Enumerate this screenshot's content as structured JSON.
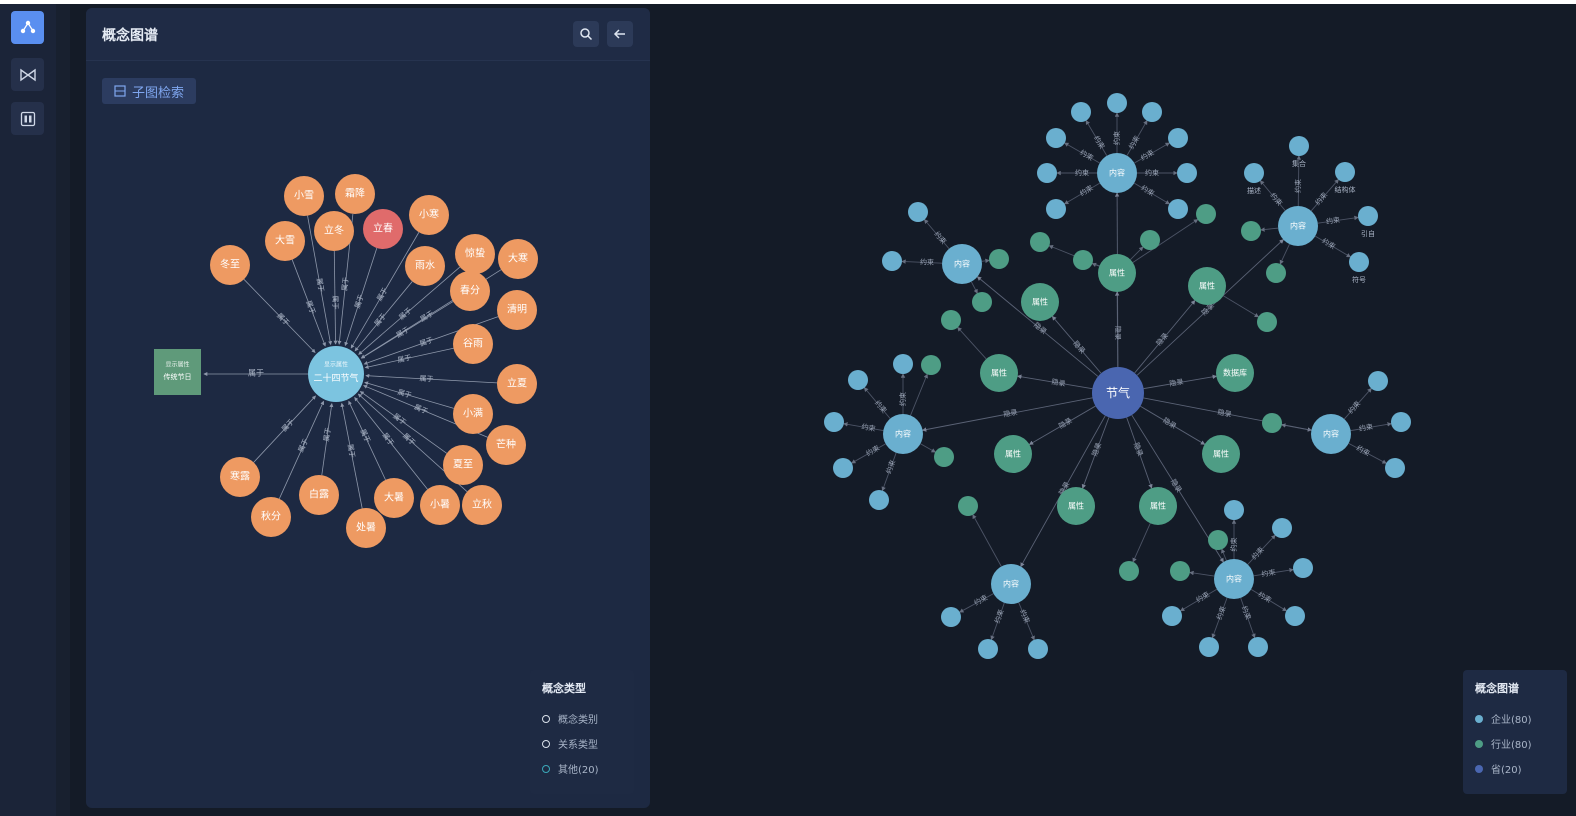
{
  "rail": {
    "items": [
      {
        "name": "graph-nav-icon",
        "active": true
      },
      {
        "name": "bowtie-nav-icon",
        "active": false
      },
      {
        "name": "grid-nav-icon",
        "active": false
      }
    ]
  },
  "panel": {
    "title": "概念图谱",
    "subgraph_button": "子图检索"
  },
  "left_graph": {
    "center_label": "二十四节气",
    "center_sublabel": "显示属性",
    "rect_node": {
      "line1": "显示属性",
      "line2": "传统节日"
    },
    "rect_edge_label": "属于",
    "edge_label": "属于",
    "highlight_node": "立春",
    "nodes": [
      "冬至",
      "大雪",
      "小雪",
      "霜降",
      "立冬",
      "立春",
      "小寒",
      "雨水",
      "惊蛰",
      "大寒",
      "春分",
      "清明",
      "谷雨",
      "立夏",
      "小满",
      "芒种",
      "夏至",
      "立秋",
      "小暑",
      "大暑",
      "处暑",
      "白露",
      "秋分",
      "寒露"
    ],
    "colors": {
      "orange": "#ee9a62",
      "red": "#e06b6b",
      "center": "#7cc4e0",
      "rect": "#5f9a7a",
      "edge": "#8d97aa"
    }
  },
  "right_graph": {
    "center_label": "节气",
    "hub_labels": {
      "content": "内容",
      "attribute": "属性",
      "database": "数据库"
    },
    "edge_labels": {
      "hub": "隐录",
      "leaf": "约束"
    },
    "leaf_labels": [
      "集合",
      "结构体",
      "引自",
      "符号",
      "描述"
    ],
    "colors": {
      "center": "#4a66b0",
      "blue": "#6aafcf",
      "green": "#4e9d85",
      "edge": "#5a6275"
    }
  },
  "legend_left": {
    "title": "概念类型",
    "items": [
      "概念类别",
      "关系类型",
      "其他(20)"
    ]
  },
  "legend_right": {
    "title": "概念图谱",
    "items": [
      {
        "label": "企业(80)",
        "color": "#6aafcf"
      },
      {
        "label": "行业(80)",
        "color": "#4e9d85"
      },
      {
        "label": "省(20)",
        "color": "#4a66b0"
      }
    ]
  }
}
